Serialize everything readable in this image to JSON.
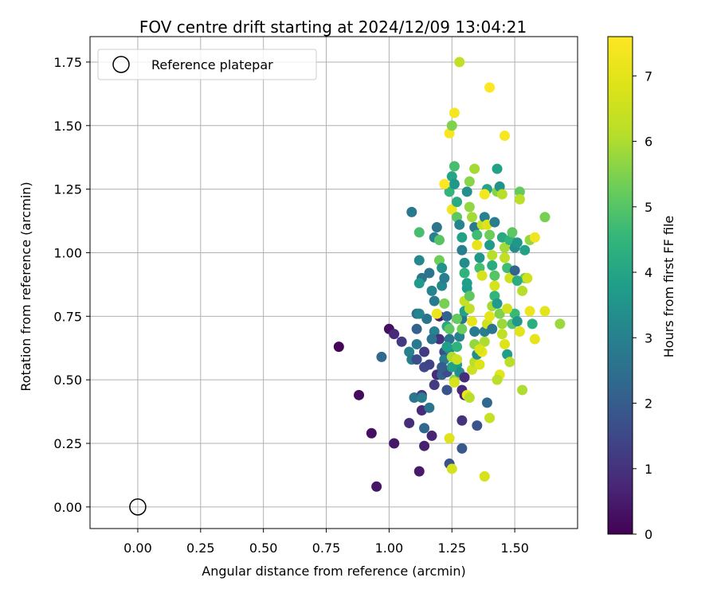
{
  "chart_data": {
    "type": "scatter",
    "title": "FOV centre drift starting at 2024/12/09 13:04:21",
    "xlabel": "Angular distance from reference (arcmin)",
    "ylabel": "Rotation from reference (arcmin)",
    "xlim": [
      -0.19,
      1.75
    ],
    "ylim": [
      -0.085,
      1.85
    ],
    "xticks": [
      0.0,
      0.25,
      0.5,
      0.75,
      1.0,
      1.25,
      1.5
    ],
    "xtick_labels": [
      "0.00",
      "0.25",
      "0.50",
      "0.75",
      "1.00",
      "1.25",
      "1.50"
    ],
    "yticks": [
      0.0,
      0.25,
      0.5,
      0.75,
      1.0,
      1.25,
      1.5,
      1.75
    ],
    "ytick_labels": [
      "0.00",
      "0.25",
      "0.50",
      "0.75",
      "1.00",
      "1.25",
      "1.50",
      "1.75"
    ],
    "grid": true,
    "legend": {
      "position": "upper-left",
      "entries": [
        "Reference platepar"
      ]
    },
    "reference_point": {
      "x": 0.0,
      "y": 0.0
    },
    "colorbar": {
      "label": "Hours from first FF file",
      "colormap": "viridis",
      "range": [
        0,
        7.6
      ],
      "ticks": [
        0,
        1,
        2,
        3,
        4,
        5,
        6,
        7
      ],
      "tick_labels": [
        "0",
        "1",
        "2",
        "3",
        "4",
        "5",
        "6",
        "7"
      ]
    },
    "series": [
      {
        "points": [
          [
            0.8,
            0.63,
            0.1
          ],
          [
            0.88,
            0.44,
            0.2
          ],
          [
            0.93,
            0.29,
            0.3
          ],
          [
            0.95,
            0.08,
            0.4
          ],
          [
            1.0,
            0.7,
            0.3
          ],
          [
            1.02,
            0.25,
            0.4
          ],
          [
            1.02,
            0.68,
            0.8
          ],
          [
            1.05,
            0.65,
            1.2
          ],
          [
            0.97,
            0.59,
            2.3
          ],
          [
            1.08,
            0.61,
            3.0
          ],
          [
            1.09,
            0.58,
            2.9
          ],
          [
            1.08,
            0.33,
            0.9
          ],
          [
            1.1,
            0.43,
            2.7
          ],
          [
            1.11,
            0.76,
            2.5
          ],
          [
            1.11,
            0.7,
            2.1
          ],
          [
            1.11,
            0.64,
            2.8
          ],
          [
            1.11,
            0.58,
            1.6
          ],
          [
            1.12,
            0.14,
            0.5
          ],
          [
            1.13,
            0.38,
            0.8
          ],
          [
            1.13,
            0.44,
            1.1
          ],
          [
            1.13,
            0.43,
            2.9
          ],
          [
            1.14,
            0.31,
            2.3
          ],
          [
            1.14,
            0.24,
            0.6
          ],
          [
            1.14,
            0.55,
            1.5
          ],
          [
            1.15,
            0.74,
            2.6
          ],
          [
            1.16,
            0.39,
            2.6
          ],
          [
            1.17,
            0.28,
            0.7
          ],
          [
            1.18,
            0.48,
            1.2
          ],
          [
            1.19,
            0.52,
            0.8
          ],
          [
            1.09,
            1.16,
            2.8
          ],
          [
            1.12,
            1.08,
            4.8
          ],
          [
            1.12,
            0.97,
            3.2
          ],
          [
            1.13,
            0.9,
            2.7
          ],
          [
            1.12,
            0.88,
            3.7
          ],
          [
            1.16,
            0.92,
            2.6
          ],
          [
            1.17,
            0.85,
            3.1
          ],
          [
            1.18,
            0.81,
            2.8
          ],
          [
            1.18,
            0.69,
            3.0
          ],
          [
            1.2,
            0.75,
            0.5
          ],
          [
            1.2,
            0.66,
            1.0
          ],
          [
            1.21,
            0.52,
            2.1
          ],
          [
            1.22,
            0.61,
            1.7
          ],
          [
            1.22,
            0.58,
            2.9
          ],
          [
            1.23,
            0.53,
            1.6
          ],
          [
            1.23,
            0.46,
            1.8
          ],
          [
            1.24,
            0.17,
            1.8
          ],
          [
            1.24,
            0.27,
            6.9
          ],
          [
            1.25,
            0.15,
            6.7
          ],
          [
            1.26,
            0.5,
            5.6
          ],
          [
            1.27,
            0.56,
            3.8
          ],
          [
            1.28,
            0.53,
            3.3
          ],
          [
            1.29,
            0.23,
            1.9
          ],
          [
            1.29,
            0.34,
            1.0
          ],
          [
            1.29,
            0.46,
            0.8
          ],
          [
            1.3,
            0.44,
            0.6
          ],
          [
            1.31,
            0.44,
            7.2
          ],
          [
            1.32,
            0.43,
            6.2
          ],
          [
            1.33,
            0.54,
            6.5
          ],
          [
            1.34,
            0.57,
            6.2
          ],
          [
            1.35,
            0.32,
            1.8
          ],
          [
            1.38,
            0.12,
            6.7
          ],
          [
            1.39,
            0.41,
            2.3
          ],
          [
            1.4,
            0.35,
            6.4
          ],
          [
            1.18,
            1.06,
            3.0
          ],
          [
            1.19,
            1.1,
            2.7
          ],
          [
            1.2,
            1.05,
            5.0
          ],
          [
            1.2,
            0.97,
            5.3
          ],
          [
            1.21,
            0.94,
            3.5
          ],
          [
            1.21,
            0.87,
            3.2
          ],
          [
            1.22,
            0.9,
            2.9
          ],
          [
            1.22,
            0.8,
            5.4
          ],
          [
            1.23,
            0.75,
            2.2
          ],
          [
            1.23,
            0.71,
            4.1
          ],
          [
            1.24,
            0.7,
            5.1
          ],
          [
            1.24,
            0.66,
            2.6
          ],
          [
            1.24,
            0.62,
            3.3
          ],
          [
            1.25,
            0.59,
            6.0
          ],
          [
            1.25,
            0.55,
            3.9
          ],
          [
            1.26,
            0.49,
            6.7
          ],
          [
            1.27,
            0.58,
            6.5
          ],
          [
            1.27,
            0.63,
            4.4
          ],
          [
            1.28,
            0.67,
            3.0
          ],
          [
            1.29,
            0.7,
            5.3
          ],
          [
            1.29,
            0.74,
            2.6
          ],
          [
            1.3,
            0.77,
            3.9
          ],
          [
            1.3,
            0.81,
            6.4
          ],
          [
            1.31,
            0.86,
            3.7
          ],
          [
            1.32,
            0.83,
            5.1
          ],
          [
            1.32,
            0.78,
            6.3
          ],
          [
            1.33,
            0.73,
            7.1
          ],
          [
            1.34,
            0.69,
            2.8
          ],
          [
            1.34,
            0.64,
            5.7
          ],
          [
            1.35,
            0.6,
            3.3
          ],
          [
            1.36,
            0.56,
            6.8
          ],
          [
            1.37,
            0.61,
            7.2
          ],
          [
            1.38,
            0.65,
            6.0
          ],
          [
            1.38,
            0.69,
            2.9
          ],
          [
            1.39,
            0.72,
            6.6
          ],
          [
            1.4,
            0.75,
            7.0
          ],
          [
            1.41,
            0.79,
            5.9
          ],
          [
            1.42,
            0.83,
            4.5
          ],
          [
            1.42,
            0.87,
            6.7
          ],
          [
            1.43,
            0.8,
            3.7
          ],
          [
            1.44,
            0.76,
            5.5
          ],
          [
            1.45,
            0.72,
            5.8
          ],
          [
            1.45,
            0.68,
            6.3
          ],
          [
            1.46,
            0.64,
            6.9
          ],
          [
            1.47,
            0.6,
            3.8
          ],
          [
            1.48,
            0.57,
            6.2
          ],
          [
            1.49,
            0.72,
            5.0
          ],
          [
            1.5,
            0.76,
            4.6
          ],
          [
            1.51,
            0.73,
            3.6
          ],
          [
            1.52,
            0.69,
            7.0
          ],
          [
            1.53,
            0.46,
            6.0
          ],
          [
            1.54,
            0.9,
            5.3
          ],
          [
            1.55,
            0.9,
            6.6
          ],
          [
            1.56,
            0.77,
            7.2
          ],
          [
            1.57,
            0.72,
            4.3
          ],
          [
            1.58,
            0.66,
            7.1
          ],
          [
            1.62,
            0.77,
            7.0
          ],
          [
            1.68,
            0.72,
            5.8
          ],
          [
            1.24,
            1.24,
            4.5
          ],
          [
            1.25,
            1.17,
            7.3
          ],
          [
            1.25,
            1.3,
            4.0
          ],
          [
            1.26,
            1.34,
            4.8
          ],
          [
            1.26,
            1.27,
            3.6
          ],
          [
            1.27,
            1.2,
            4.2
          ],
          [
            1.27,
            1.14,
            5.1
          ],
          [
            1.28,
            1.11,
            3.1
          ],
          [
            1.29,
            1.06,
            3.9
          ],
          [
            1.29,
            1.01,
            2.9
          ],
          [
            1.3,
            0.96,
            3.3
          ],
          [
            1.3,
            0.92,
            4.4
          ],
          [
            1.31,
            0.88,
            3.8
          ],
          [
            1.31,
            1.24,
            3.4
          ],
          [
            1.32,
            1.28,
            5.6
          ],
          [
            1.32,
            1.18,
            5.7
          ],
          [
            1.33,
            1.14,
            5.9
          ],
          [
            1.34,
            1.1,
            2.8
          ],
          [
            1.34,
            1.33,
            5.9
          ],
          [
            1.35,
            1.07,
            4.7
          ],
          [
            1.35,
            1.03,
            7.1
          ],
          [
            1.36,
            0.98,
            3.6
          ],
          [
            1.36,
            0.94,
            4.8
          ],
          [
            1.37,
            0.91,
            6.7
          ],
          [
            1.37,
            1.11,
            6.4
          ],
          [
            1.38,
            1.14,
            3.0
          ],
          [
            1.38,
            1.23,
            7.4
          ],
          [
            1.39,
            1.25,
            4.0
          ],
          [
            1.39,
            1.11,
            6.9
          ],
          [
            1.4,
            1.07,
            5.3
          ],
          [
            1.4,
            1.03,
            3.7
          ],
          [
            1.41,
            0.99,
            6.1
          ],
          [
            1.41,
            0.95,
            4.2
          ],
          [
            1.42,
            0.91,
            5.0
          ],
          [
            1.42,
            1.12,
            2.9
          ],
          [
            1.43,
            1.33,
            3.9
          ],
          [
            1.43,
            1.24,
            5.6
          ],
          [
            1.44,
            1.26,
            3.5
          ],
          [
            1.45,
            1.23,
            6.1
          ],
          [
            1.45,
            1.06,
            4.1
          ],
          [
            1.46,
            1.02,
            5.9
          ],
          [
            1.46,
            0.98,
            6.3
          ],
          [
            1.47,
            0.94,
            4.7
          ],
          [
            1.48,
            0.9,
            6.6
          ],
          [
            1.48,
            1.05,
            4.4
          ],
          [
            1.49,
            1.08,
            5.1
          ],
          [
            1.5,
            1.02,
            3.3
          ],
          [
            1.5,
            0.93,
            2.2
          ],
          [
            1.51,
            0.89,
            4.2
          ],
          [
            1.51,
            1.04,
            3.6
          ],
          [
            1.52,
            1.24,
            5.2
          ],
          [
            1.52,
            1.21,
            6.2
          ],
          [
            1.53,
            0.85,
            6.1
          ],
          [
            1.54,
            1.01,
            3.9
          ],
          [
            1.56,
            1.05,
            5.7
          ],
          [
            1.58,
            1.06,
            7.3
          ],
          [
            1.62,
            1.14,
            5.4
          ],
          [
            1.24,
            1.47,
            7.5
          ],
          [
            1.25,
            1.5,
            5.5
          ],
          [
            1.26,
            1.55,
            7.4
          ],
          [
            1.28,
            1.75,
            6.3
          ],
          [
            1.4,
            1.65,
            7.6
          ],
          [
            1.46,
            1.46,
            7.5
          ],
          [
            1.22,
            1.27,
            7.6
          ],
          [
            1.38,
            1.23,
            7.4
          ],
          [
            1.12,
            0.76,
            3.1
          ],
          [
            1.14,
            0.61,
            1.2
          ],
          [
            1.16,
            0.56,
            1.4
          ],
          [
            1.17,
            0.66,
            2.6
          ],
          [
            1.21,
            0.55,
            2.0
          ],
          [
            1.23,
            0.63,
            3.8
          ],
          [
            1.19,
            0.76,
            7.2
          ],
          [
            1.27,
            0.74,
            5.2
          ],
          [
            1.3,
            0.51,
            0.9
          ],
          [
            1.36,
            0.62,
            6.8
          ],
          [
            1.44,
            0.52,
            7.0
          ],
          [
            1.47,
            0.78,
            6.6
          ],
          [
            1.41,
            0.7,
            2.7
          ],
          [
            1.43,
            0.5,
            6.2
          ]
        ]
      }
    ]
  }
}
